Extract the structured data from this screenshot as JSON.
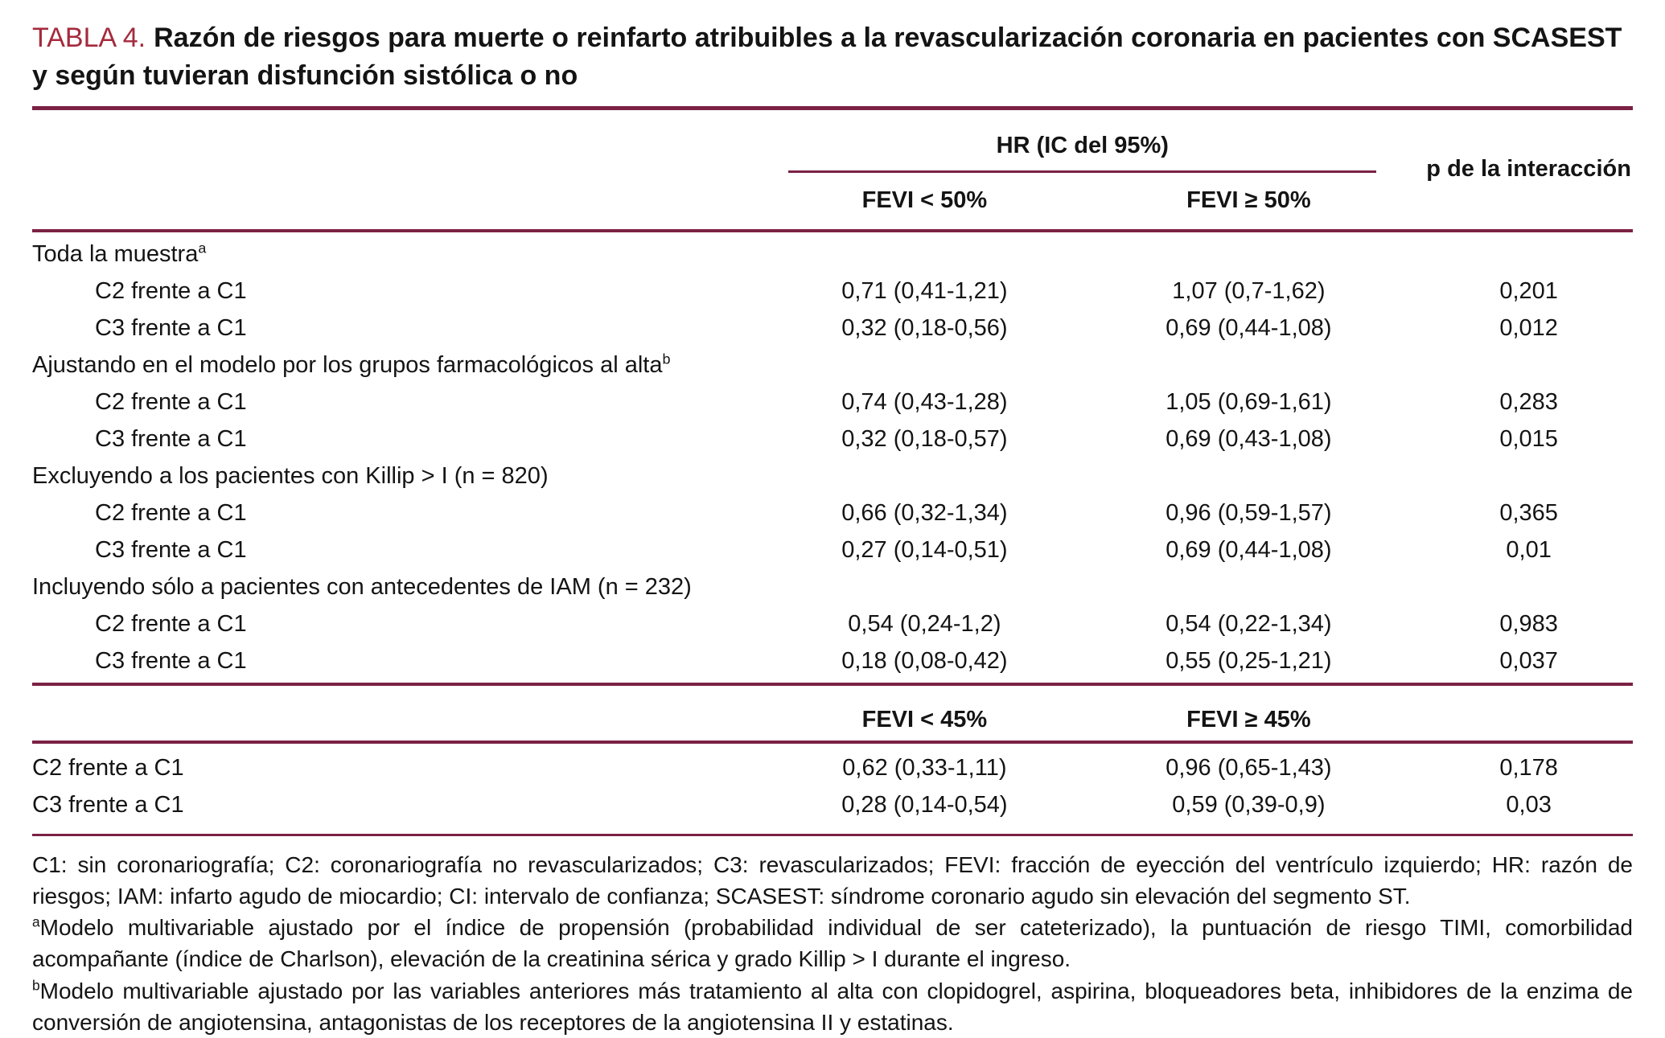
{
  "title": {
    "label": "TABLA 4.",
    "text": "Razón de riesgos para muerte o reinfarto atribuibles a la revascularización coronaria en pacientes con SCASEST y según tuvieran disfunción sistólica o no"
  },
  "table": {
    "group_header": "HR (IC del 95%)",
    "p_header": "p de la interacción",
    "fevi50_headers": {
      "lt": "FEVI < 50%",
      "ge": "FEVI ≥ 50%"
    },
    "sections": [
      {
        "label": "Toda la muestra",
        "sup": "a",
        "rows": [
          {
            "label": "C2 frente a C1",
            "fevi_lt": "0,71 (0,41-1,21)",
            "fevi_ge": "1,07 (0,7-1,62)",
            "p": "0,201"
          },
          {
            "label": "C3 frente a C1",
            "fevi_lt": "0,32 (0,18-0,56)",
            "fevi_ge": "0,69 (0,44-1,08)",
            "p": "0,012"
          }
        ]
      },
      {
        "label": "Ajustando en el modelo por los grupos farmacológicos al alta",
        "sup": "b",
        "rows": [
          {
            "label": "C2 frente a C1",
            "fevi_lt": "0,74 (0,43-1,28)",
            "fevi_ge": "1,05 (0,69-1,61)",
            "p": "0,283"
          },
          {
            "label": "C3 frente a C1",
            "fevi_lt": "0,32 (0,18-0,57)",
            "fevi_ge": "0,69 (0,43-1,08)",
            "p": "0,015"
          }
        ]
      },
      {
        "label": "Excluyendo a los pacientes con Killip > I (n = 820)",
        "rows": [
          {
            "label": "C2 frente a C1",
            "fevi_lt": "0,66 (0,32-1,34)",
            "fevi_ge": "0,96 (0,59-1,57)",
            "p": "0,365"
          },
          {
            "label": "C3 frente a C1",
            "fevi_lt": "0,27 (0,14-0,51)",
            "fevi_ge": "0,69 (0,44-1,08)",
            "p": "0,01"
          }
        ]
      },
      {
        "label": "Incluyendo sólo a pacientes con antecedentes de IAM (n = 232)",
        "rows": [
          {
            "label": "C2 frente a C1",
            "fevi_lt": "0,54 (0,24-1,2)",
            "fevi_ge": "0,54 (0,22-1,34)",
            "p": "0,983"
          },
          {
            "label": "C3 frente a C1",
            "fevi_lt": "0,18 (0,08-0,42)",
            "fevi_ge": "0,55 (0,25-1,21)",
            "p": "0,037"
          }
        ]
      }
    ],
    "fevi45_headers": {
      "lt": "FEVI < 45%",
      "ge": "FEVI ≥ 45%"
    },
    "fevi45_rows": [
      {
        "label": "C2 frente a C1",
        "fevi_lt": "0,62 (0,33-1,11)",
        "fevi_ge": "0,96 (0,65-1,43)",
        "p": "0,178"
      },
      {
        "label": "C3 frente a C1",
        "fevi_lt": "0,28 (0,14-0,54)",
        "fevi_ge": "0,59 (0,39-0,9)",
        "p": "0,03"
      }
    ]
  },
  "footnotes": {
    "abbreviations": "C1: sin coronariografía; C2: coronariografía no revascularizados; C3: revascularizados; FEVI: fracción de eyección del ventrículo izquierdo; HR: razón de riesgos; IAM: infarto agudo de miocardio; CI: intervalo de confianza; SCASEST: síndrome coronario agudo sin elevación del segmento ST.",
    "a": {
      "marker": "a",
      "text": "Modelo multivariable ajustado por el índice de propensión (probabilidad individual de ser cateterizado), la puntuación de riesgo TIMI, comorbilidad acompañante (índice de Charlson), elevación de la creatinina sérica y grado Killip > I durante el ingreso."
    },
    "b": {
      "marker": "b",
      "text": "Modelo multivariable ajustado por las variables anteriores más tratamiento al alta con clopidogrel, aspirina, bloqueadores beta, inhibidores de la enzima de conversión de angiotensina, antagonistas de los receptores de la angiotensina II y estatinas."
    }
  },
  "colors": {
    "accent_title": "#a52a3d",
    "rule": "#7b2144"
  }
}
